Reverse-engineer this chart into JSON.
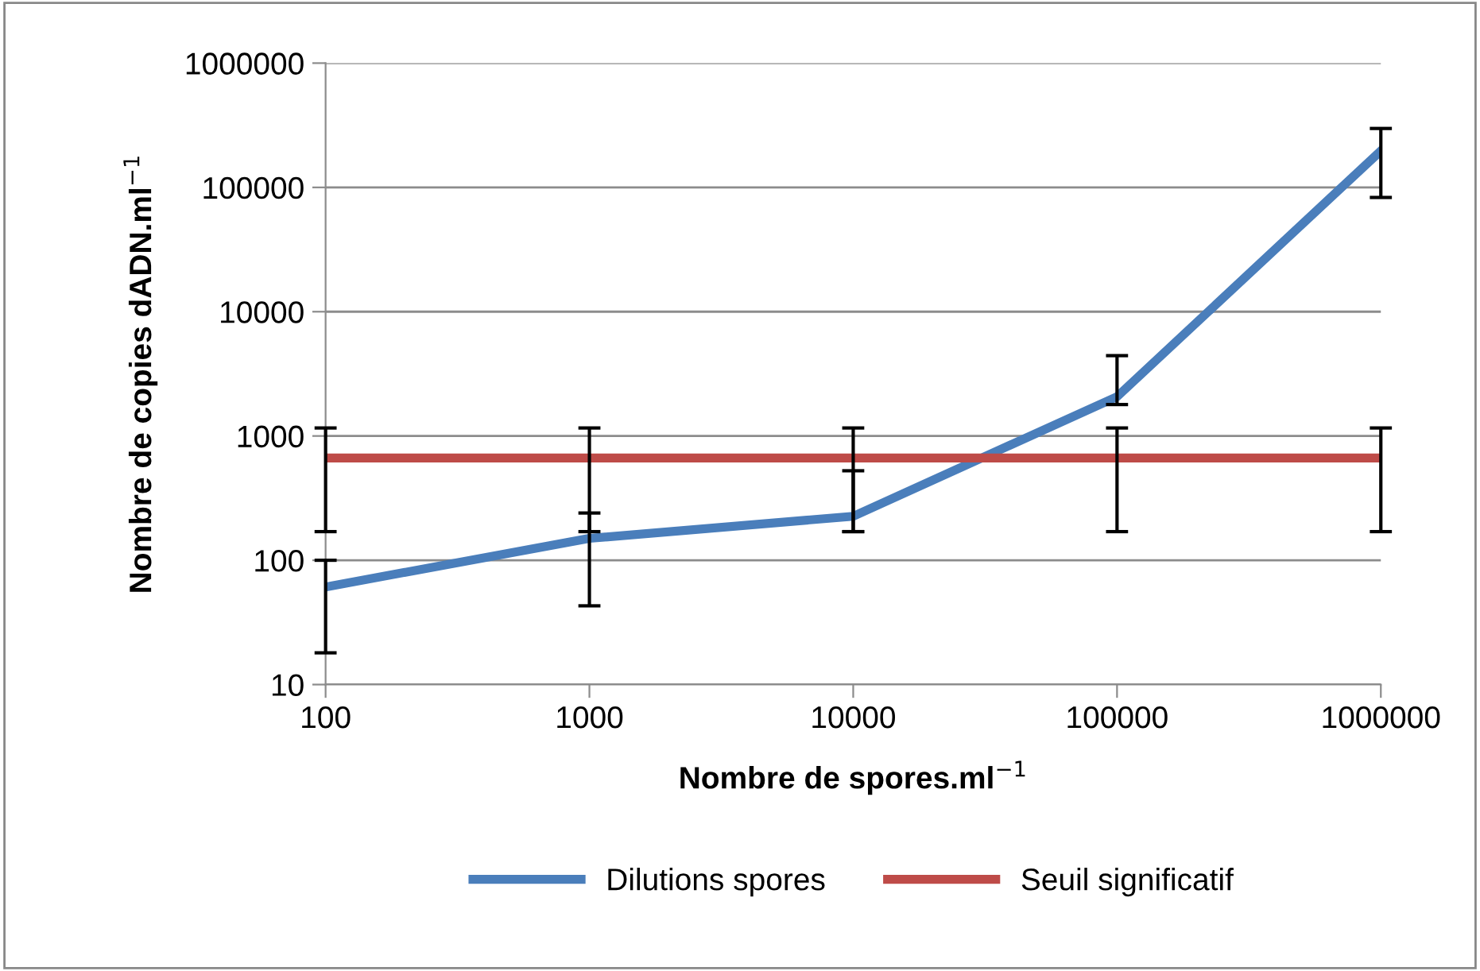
{
  "chart_data": {
    "type": "line",
    "xlabel": "Nombre de spores.ml$^{−1}$",
    "ylabel": "Nombre de copies dADN.ml$^{−1}$",
    "x": [
      100,
      1000,
      10000,
      100000,
      1000000
    ],
    "series": [
      {
        "name": "Dilutions spores",
        "color": "#4a7ebb",
        "values": [
          61,
          150,
          226,
          2070,
          197000
        ],
        "errors": [
          [
            18,
            100
          ],
          [
            43,
            240
          ],
          [
            170,
            525
          ],
          [
            1790,
            4430
          ],
          [
            83000,
            298000
          ]
        ]
      },
      {
        "name": "Seuil significatif",
        "color": "#be4b48",
        "values": [
          665,
          665,
          665,
          665,
          665
        ],
        "errors": [
          [
            170,
            1160
          ],
          [
            170,
            1160
          ],
          [
            170,
            1160
          ],
          [
            170,
            1160
          ],
          [
            170,
            1160
          ]
        ]
      }
    ],
    "log": "xy",
    "xlim": [
      100,
      1000000
    ],
    "ylim": [
      10,
      1000000
    ],
    "xticks": [
      100,
      1000,
      10000,
      100000,
      1000000
    ],
    "yticks": [
      10,
      100,
      1000,
      10000,
      100000,
      1000000
    ],
    "grid": "y",
    "legend": "bottom",
    "marker": "none",
    "line_style": "solid"
  }
}
